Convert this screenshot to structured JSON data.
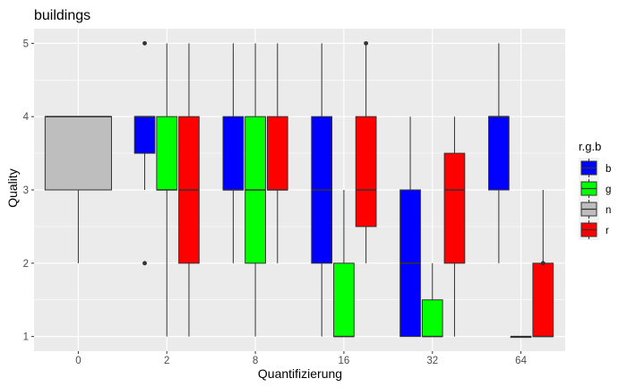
{
  "chart_data": {
    "type": "box",
    "title": "buildings",
    "xlabel": "Quantifizierung",
    "ylabel": "Quality",
    "ylim": [
      0.8,
      5.2
    ],
    "yticks": [
      1,
      2,
      3,
      4,
      5
    ],
    "grid": true,
    "legend_position": "right",
    "legend_title": "r.g.b",
    "legend": [
      {
        "key": "b",
        "label": "b",
        "color": "#0000FF"
      },
      {
        "key": "g",
        "label": "g",
        "color": "#00FF00"
      },
      {
        "key": "n",
        "label": "n",
        "color": "#BEBEBE"
      },
      {
        "key": "r",
        "label": "r",
        "color": "#FF0000"
      }
    ],
    "categories": [
      "0",
      "2",
      "8",
      "16",
      "32",
      "64"
    ],
    "groups": [
      {
        "category": "0",
        "boxes": [
          {
            "series": "n",
            "min": 2,
            "q1": 3,
            "median": 4,
            "q3": 4,
            "max": 4,
            "outliers": []
          }
        ]
      },
      {
        "category": "2",
        "boxes": [
          {
            "series": "b",
            "min": 3,
            "q1": 3.5,
            "median": 4,
            "q3": 4,
            "max": 4,
            "outliers": [
              2,
              5
            ]
          },
          {
            "series": "g",
            "min": 1,
            "q1": 3,
            "median": 3,
            "q3": 4,
            "max": 5,
            "outliers": []
          },
          {
            "series": "r",
            "min": 1,
            "q1": 2,
            "median": 3,
            "q3": 4,
            "max": 5,
            "outliers": []
          }
        ]
      },
      {
        "category": "8",
        "boxes": [
          {
            "series": "b",
            "min": 2,
            "q1": 3,
            "median": 3,
            "q3": 4,
            "max": 5,
            "outliers": []
          },
          {
            "series": "g",
            "min": 1,
            "q1": 2,
            "median": 3,
            "q3": 4,
            "max": 5,
            "outliers": []
          },
          {
            "series": "r",
            "min": 2,
            "q1": 3,
            "median": 3,
            "q3": 4,
            "max": 5,
            "outliers": []
          }
        ]
      },
      {
        "category": "16",
        "boxes": [
          {
            "series": "b",
            "min": 1,
            "q1": 2,
            "median": 3,
            "q3": 4,
            "max": 5,
            "outliers": []
          },
          {
            "series": "g",
            "min": 1,
            "q1": 1,
            "median": 1,
            "q3": 2,
            "max": 3,
            "outliers": []
          },
          {
            "series": "r",
            "min": 2,
            "q1": 2.5,
            "median": 3,
            "q3": 4,
            "max": 5,
            "outliers": [
              5
            ]
          }
        ]
      },
      {
        "category": "32",
        "boxes": [
          {
            "series": "b",
            "min": 1,
            "q1": 1,
            "median": 2,
            "q3": 3,
            "max": 4,
            "outliers": []
          },
          {
            "series": "g",
            "min": 1,
            "q1": 1,
            "median": 1,
            "q3": 1.5,
            "max": 2,
            "outliers": []
          },
          {
            "series": "r",
            "min": 1,
            "q1": 2,
            "median": 3,
            "q3": 3.5,
            "max": 4,
            "outliers": []
          }
        ]
      },
      {
        "category": "64",
        "boxes": [
          {
            "series": "b",
            "min": 2,
            "q1": 3,
            "median": 4,
            "q3": 4,
            "max": 5,
            "outliers": []
          },
          {
            "series": "g",
            "min": 1,
            "q1": 1,
            "median": 1,
            "q3": 1,
            "max": 1,
            "outliers": []
          },
          {
            "series": "r",
            "min": 1,
            "q1": 1,
            "median": 1,
            "q3": 2,
            "max": 3,
            "outliers": [
              2
            ]
          }
        ]
      }
    ]
  }
}
